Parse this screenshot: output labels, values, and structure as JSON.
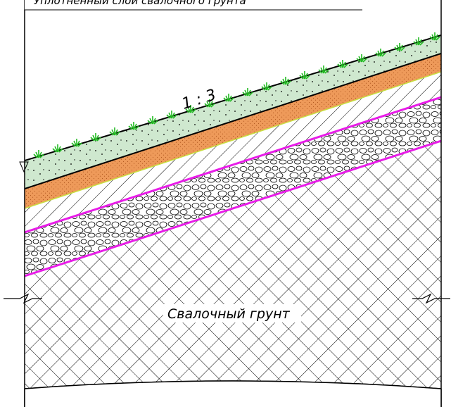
{
  "labels": {
    "top_caption": "Уплотненный слой свалочного грунта",
    "slope_ratio": "1 : 3",
    "waste_soil": "Свалочный грунт"
  },
  "colors": {
    "turf": "#cfe8cf",
    "sand_clay": "#ee9a5a",
    "gravel_border": "#e81ce8",
    "grass": "#22bb22",
    "ink": "#000000",
    "lime_edge": "#c8e040"
  }
}
